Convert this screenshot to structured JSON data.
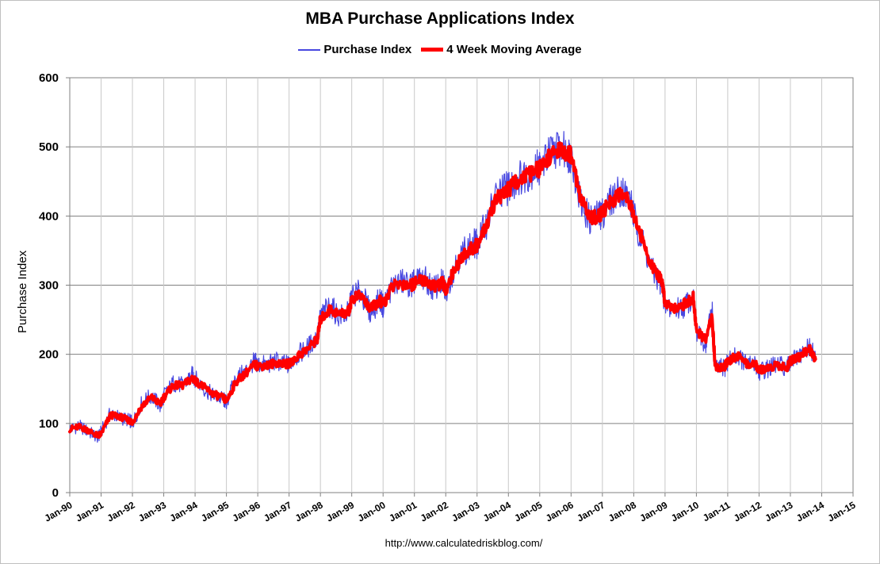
{
  "chart_data": {
    "type": "line",
    "title": "MBA Purchase Applications Index",
    "ylabel": "Purchase Index",
    "xlabel": "",
    "ylim": [
      0,
      600
    ],
    "yticks": [
      0,
      100,
      200,
      300,
      400,
      500,
      600
    ],
    "xlim": [
      1990,
      2015
    ],
    "xticks": [
      "Jan-90",
      "Jan-91",
      "Jan-92",
      "Jan-93",
      "Jan-94",
      "Jan-95",
      "Jan-96",
      "Jan-97",
      "Jan-98",
      "Jan-99",
      "Jan-00",
      "Jan-01",
      "Jan-02",
      "Jan-03",
      "Jan-04",
      "Jan-05",
      "Jan-06",
      "Jan-07",
      "Jan-08",
      "Jan-09",
      "Jan-10",
      "Jan-11",
      "Jan-12",
      "Jan-13",
      "Jan-14",
      "Jan-15"
    ],
    "grid": true,
    "legend_position": "top",
    "source": "http://www.calculatedriskblog.com/",
    "series": [
      {
        "name": "Purchase Index",
        "color": "#4848e0",
        "style": "thin",
        "volatility": 14,
        "x": [
          1990.0,
          1990.3,
          1990.6,
          1990.9,
          1991.0,
          1991.3,
          1991.6,
          1991.9,
          1992.0,
          1992.3,
          1992.6,
          1992.9,
          1993.0,
          1993.3,
          1993.6,
          1993.9,
          1994.0,
          1994.3,
          1994.6,
          1994.9,
          1995.0,
          1995.3,
          1995.6,
          1995.9,
          1996.0,
          1996.3,
          1996.6,
          1996.9,
          1997.0,
          1997.3,
          1997.6,
          1997.9,
          1998.0,
          1998.3,
          1998.6,
          1998.9,
          1999.0,
          1999.3,
          1999.6,
          1999.9,
          2000.0,
          2000.3,
          2000.6,
          2000.9,
          2001.0,
          2001.3,
          2001.6,
          2001.9,
          2002.0,
          2002.3,
          2002.6,
          2002.9,
          2003.0,
          2003.3,
          2003.6,
          2003.9,
          2004.0,
          2004.3,
          2004.6,
          2004.9,
          2005.0,
          2005.3,
          2005.6,
          2005.9,
          2006.0,
          2006.3,
          2006.6,
          2006.9,
          2007.0,
          2007.3,
          2007.6,
          2007.9,
          2008.0,
          2008.3,
          2008.6,
          2008.9,
          2009.0,
          2009.3,
          2009.6,
          2009.9,
          2010.0,
          2010.3,
          2010.5,
          2010.6,
          2010.9,
          2011.0,
          2011.3,
          2011.6,
          2011.9,
          2012.0,
          2012.3,
          2012.6,
          2012.9,
          2013.0,
          2013.3,
          2013.6,
          2013.8
        ],
        "values": [
          92,
          96,
          88,
          80,
          88,
          115,
          108,
          105,
          100,
          130,
          140,
          125,
          140,
          158,
          155,
          170,
          165,
          150,
          140,
          135,
          130,
          165,
          175,
          190,
          185,
          185,
          190,
          185,
          185,
          200,
          210,
          225,
          255,
          270,
          255,
          260,
          285,
          290,
          260,
          280,
          270,
          300,
          305,
          300,
          305,
          310,
          295,
          305,
          290,
          330,
          350,
          360,
          360,
          390,
          430,
          440,
          440,
          455,
          460,
          470,
          470,
          490,
          500,
          490,
          490,
          420,
          395,
          400,
          405,
          425,
          440,
          420,
          400,
          360,
          320,
          300,
          270,
          265,
          270,
          285,
          230,
          215,
          270,
          180,
          180,
          190,
          200,
          185,
          185,
          175,
          180,
          185,
          180,
          190,
          195,
          210,
          195
        ]
      },
      {
        "name": "4 Week Moving Average",
        "color": "#ff0000",
        "style": "thick",
        "volatility": 6,
        "x": [
          1990.0,
          1990.3,
          1990.6,
          1990.9,
          1991.0,
          1991.3,
          1991.6,
          1991.9,
          1992.0,
          1992.3,
          1992.6,
          1992.9,
          1993.0,
          1993.3,
          1993.6,
          1993.9,
          1994.0,
          1994.3,
          1994.6,
          1994.9,
          1995.0,
          1995.3,
          1995.6,
          1995.9,
          1996.0,
          1996.3,
          1996.6,
          1996.9,
          1997.0,
          1997.3,
          1997.6,
          1997.9,
          1998.0,
          1998.3,
          1998.6,
          1998.9,
          1999.0,
          1999.3,
          1999.6,
          1999.9,
          2000.0,
          2000.3,
          2000.6,
          2000.9,
          2001.0,
          2001.3,
          2001.6,
          2001.9,
          2002.0,
          2002.3,
          2002.6,
          2002.9,
          2003.0,
          2003.3,
          2003.6,
          2003.9,
          2004.0,
          2004.3,
          2004.6,
          2004.9,
          2005.0,
          2005.3,
          2005.6,
          2005.9,
          2006.0,
          2006.3,
          2006.6,
          2006.9,
          2007.0,
          2007.3,
          2007.6,
          2007.9,
          2008.0,
          2008.3,
          2008.6,
          2008.9,
          2009.0,
          2009.3,
          2009.6,
          2009.9,
          2010.0,
          2010.3,
          2010.5,
          2010.6,
          2010.9,
          2011.0,
          2011.3,
          2011.6,
          2011.9,
          2012.0,
          2012.3,
          2012.6,
          2012.9,
          2013.0,
          2013.3,
          2013.6,
          2013.8
        ],
        "values": [
          92,
          95,
          90,
          82,
          85,
          112,
          110,
          104,
          102,
          125,
          138,
          128,
          138,
          155,
          155,
          165,
          162,
          152,
          142,
          137,
          132,
          160,
          172,
          185,
          183,
          184,
          188,
          186,
          186,
          198,
          208,
          222,
          250,
          265,
          258,
          262,
          280,
          285,
          265,
          278,
          272,
          298,
          302,
          300,
          303,
          308,
          298,
          303,
          293,
          325,
          345,
          355,
          358,
          385,
          425,
          435,
          438,
          452,
          458,
          466,
          468,
          485,
          495,
          490,
          488,
          425,
          398,
          400,
          405,
          422,
          435,
          420,
          402,
          362,
          325,
          305,
          275,
          268,
          272,
          282,
          235,
          220,
          255,
          182,
          182,
          190,
          198,
          186,
          185,
          177,
          181,
          184,
          182,
          190,
          196,
          208,
          193
        ]
      }
    ]
  }
}
